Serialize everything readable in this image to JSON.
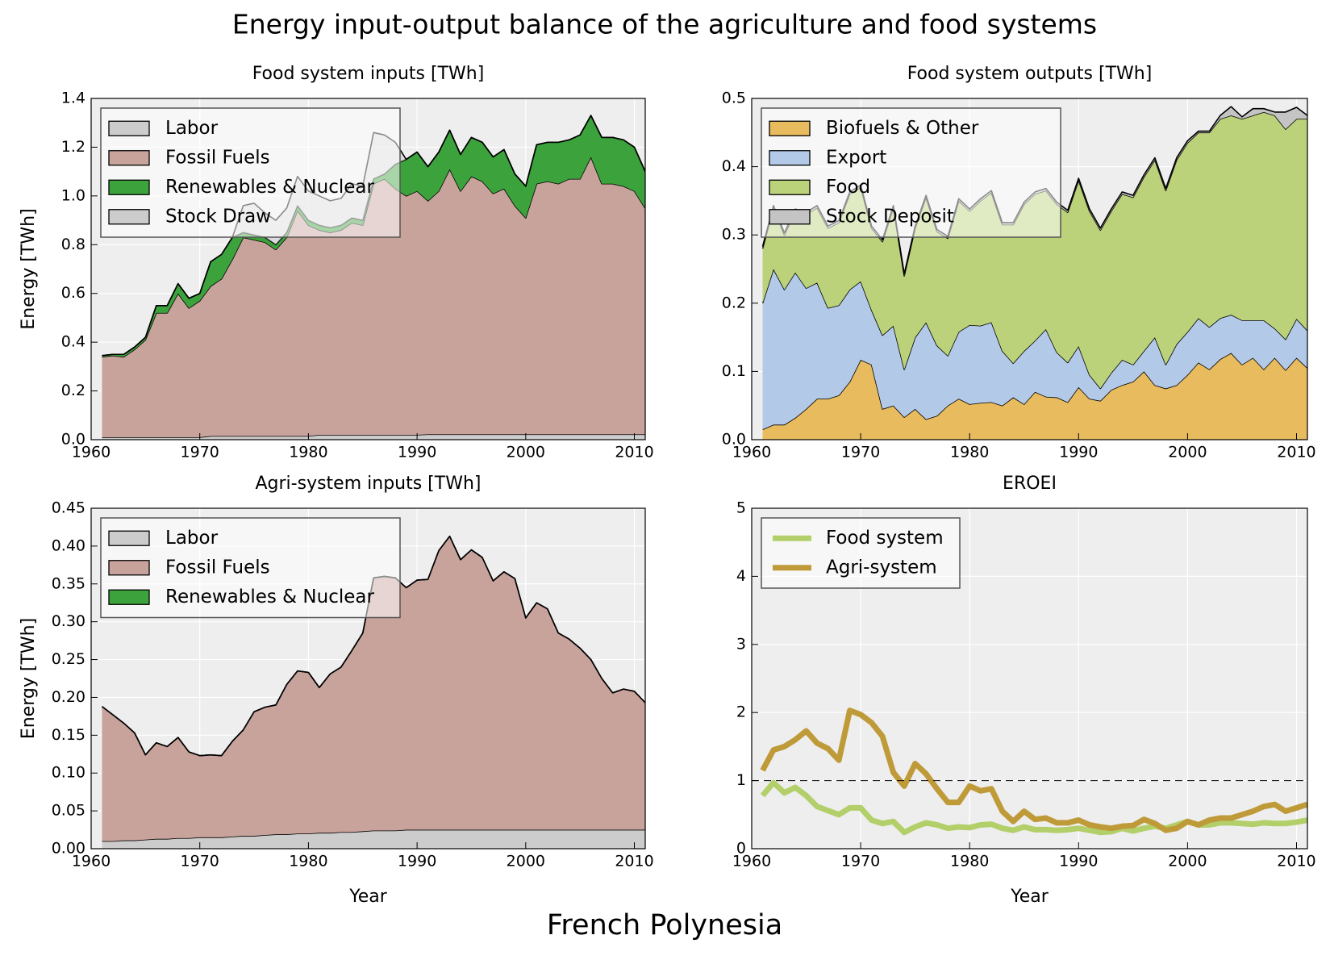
{
  "title": "Energy input-output balance of the agriculture and food systems",
  "footer": "French Polynesia",
  "chart_data": [
    {
      "type": "area",
      "title": "Food system inputs [TWh]",
      "ylabel": "Energy [TWh]",
      "x": [
        1961,
        1962,
        1963,
        1964,
        1965,
        1966,
        1967,
        1968,
        1969,
        1970,
        1971,
        1972,
        1973,
        1974,
        1975,
        1976,
        1977,
        1978,
        1979,
        1980,
        1981,
        1982,
        1983,
        1984,
        1985,
        1986,
        1987,
        1988,
        1989,
        1990,
        1991,
        1992,
        1993,
        1994,
        1995,
        1996,
        1997,
        1998,
        1999,
        2000,
        2001,
        2002,
        2003,
        2004,
        2005,
        2006,
        2007,
        2008,
        2009,
        2010,
        2011
      ],
      "xlim": [
        1960,
        2011
      ],
      "xticks": [
        1960,
        1970,
        1980,
        1990,
        2000,
        2010
      ],
      "ylim": [
        0,
        1.4
      ],
      "yticks": [
        {
          "value": 0,
          "label": "0.0"
        },
        0.2,
        0.4,
        0.6,
        0.8,
        {
          "value": 1,
          "label": "1.0"
        },
        1.2,
        1.4
      ],
      "grid": true,
      "legend": "upper left",
      "series": [
        {
          "name": "Labor",
          "color": "#cccccc",
          "values": [
            0.01,
            0.01,
            0.01,
            0.01,
            0.01,
            0.01,
            0.01,
            0.01,
            0.01,
            0.01,
            0.015,
            0.015,
            0.015,
            0.015,
            0.015,
            0.015,
            0.015,
            0.015,
            0.015,
            0.015,
            0.02,
            0.02,
            0.02,
            0.02,
            0.02,
            0.02,
            0.02,
            0.02,
            0.02,
            0.02,
            0.022,
            0.022,
            0.022,
            0.022,
            0.022,
            0.022,
            0.022,
            0.022,
            0.022,
            0.022,
            0.022,
            0.022,
            0.022,
            0.022,
            0.022,
            0.022,
            0.022,
            0.022,
            0.022,
            0.022,
            0.022
          ]
        },
        {
          "name": "Fossil Fuels",
          "color": "#c8a39c",
          "values": [
            0.33,
            0.335,
            0.33,
            0.36,
            0.4,
            0.51,
            0.51,
            0.59,
            0.53,
            0.56,
            0.615,
            0.645,
            0.725,
            0.815,
            0.805,
            0.795,
            0.765,
            0.815,
            0.925,
            0.865,
            0.84,
            0.83,
            0.84,
            0.87,
            0.86,
            1.03,
            1.05,
            1.01,
            0.98,
            1.0,
            0.958,
            0.998,
            1.088,
            0.998,
            1.058,
            1.038,
            0.988,
            1.008,
            0.938,
            0.888,
            1.028,
            1.038,
            1.028,
            1.048,
            1.048,
            1.138,
            1.028,
            1.028,
            1.018,
            0.998,
            0.928
          ]
        },
        {
          "name": "Renewables & Nuclear",
          "color": "#3ca33c",
          "values": [
            0.005,
            0.005,
            0.01,
            0.01,
            0.01,
            0.03,
            0.03,
            0.04,
            0.04,
            0.03,
            0.1,
            0.1,
            0.09,
            0.02,
            0.02,
            0.02,
            0.02,
            0.02,
            0.02,
            0.02,
            0.02,
            0.02,
            0.02,
            0.02,
            0.02,
            0.02,
            0.02,
            0.1,
            0.15,
            0.16,
            0.14,
            0.16,
            0.16,
            0.15,
            0.16,
            0.16,
            0.15,
            0.16,
            0.13,
            0.13,
            0.16,
            0.16,
            0.17,
            0.16,
            0.18,
            0.17,
            0.19,
            0.19,
            0.19,
            0.18,
            0.15
          ]
        },
        {
          "name": "Stock Draw",
          "color": "#cccccc",
          "values": [
            0,
            0,
            0,
            0,
            0,
            0,
            0,
            0,
            0,
            0,
            0,
            0,
            0,
            0.11,
            0.13,
            0.1,
            0.1,
            0.1,
            0.12,
            0.12,
            0.12,
            0.11,
            0.11,
            0.14,
            0.14,
            0.19,
            0.16,
            0.09,
            0,
            0,
            0,
            0,
            0,
            0,
            0,
            0,
            0,
            0,
            0,
            0,
            0,
            0,
            0,
            0,
            0,
            0,
            0,
            0,
            0,
            0,
            0
          ]
        }
      ]
    },
    {
      "type": "area",
      "title": "Food system outputs [TWh]",
      "x": [
        1961,
        1962,
        1963,
        1964,
        1965,
        1966,
        1967,
        1968,
        1969,
        1970,
        1971,
        1972,
        1973,
        1974,
        1975,
        1976,
        1977,
        1978,
        1979,
        1980,
        1981,
        1982,
        1983,
        1984,
        1985,
        1986,
        1987,
        1988,
        1989,
        1990,
        1991,
        1992,
        1993,
        1994,
        1995,
        1996,
        1997,
        1998,
        1999,
        2000,
        2001,
        2002,
        2003,
        2004,
        2005,
        2006,
        2007,
        2008,
        2009,
        2010,
        2011
      ],
      "xlim": [
        1960,
        2011
      ],
      "xticks": [
        1960,
        1970,
        1980,
        1990,
        2000,
        2010
      ],
      "ylim": [
        0,
        0.5
      ],
      "yticks": [
        {
          "value": 0,
          "label": "0.0"
        },
        0.1,
        0.2,
        0.3,
        0.4,
        0.5
      ],
      "grid": true,
      "legend": "upper left",
      "series": [
        {
          "name": "Biofuels & Other",
          "color": "#e8bc5e",
          "values": [
            0.015,
            0.022,
            0.022,
            0.032,
            0.045,
            0.06,
            0.06,
            0.065,
            0.085,
            0.117,
            0.11,
            0.045,
            0.05,
            0.033,
            0.045,
            0.03,
            0.035,
            0.05,
            0.06,
            0.052,
            0.054,
            0.055,
            0.05,
            0.062,
            0.052,
            0.07,
            0.063,
            0.062,
            0.055,
            0.077,
            0.06,
            0.057,
            0.073,
            0.08,
            0.085,
            0.1,
            0.08,
            0.075,
            0.08,
            0.095,
            0.113,
            0.103,
            0.118,
            0.127,
            0.11,
            0.12,
            0.103,
            0.12,
            0.102,
            0.12,
            0.105
          ]
        },
        {
          "name": "Export",
          "color": "#b3c9e8",
          "values": [
            0.185,
            0.228,
            0.198,
            0.213,
            0.177,
            0.17,
            0.133,
            0.132,
            0.135,
            0.115,
            0.08,
            0.108,
            0.117,
            0.07,
            0.105,
            0.142,
            0.103,
            0.073,
            0.098,
            0.116,
            0.113,
            0.117,
            0.08,
            0.05,
            0.078,
            0.075,
            0.099,
            0.066,
            0.058,
            0.06,
            0.035,
            0.018,
            0.025,
            0.037,
            0.025,
            0.03,
            0.07,
            0.035,
            0.06,
            0.063,
            0.065,
            0.062,
            0.06,
            0.056,
            0.065,
            0.055,
            0.072,
            0.043,
            0.045,
            0.057,
            0.055
          ]
        },
        {
          "name": "Food",
          "color": "#bbd27a",
          "values": [
            0.08,
            0.09,
            0.08,
            0.09,
            0.108,
            0.11,
            0.117,
            0.121,
            0.14,
            0.138,
            0.12,
            0.137,
            0.173,
            0.137,
            0.16,
            0.183,
            0.167,
            0.172,
            0.192,
            0.167,
            0.183,
            0.19,
            0.185,
            0.203,
            0.215,
            0.215,
            0.203,
            0.217,
            0.22,
            0.243,
            0.24,
            0.232,
            0.237,
            0.243,
            0.245,
            0.255,
            0.26,
            0.255,
            0.27,
            0.277,
            0.272,
            0.285,
            0.292,
            0.292,
            0.295,
            0.3,
            0.305,
            0.312,
            0.308,
            0.293,
            0.31
          ]
        },
        {
          "name": "Stock Deposit",
          "color": "#c4c4c4",
          "values": [
            0.003,
            0.003,
            0.003,
            0.003,
            0.003,
            0.003,
            0.003,
            0.003,
            0.003,
            0.003,
            0.003,
            0.003,
            0.003,
            0.003,
            0.003,
            0.003,
            0.003,
            0.003,
            0.003,
            0.003,
            0.003,
            0.003,
            0.003,
            0.003,
            0.003,
            0.003,
            0.003,
            0.003,
            0.003,
            0.003,
            0.003,
            0.003,
            0.003,
            0.003,
            0.003,
            0.003,
            0.003,
            0.003,
            0.003,
            0.003,
            0.002,
            0.002,
            0.005,
            0.013,
            0.003,
            0.01,
            0.005,
            0.005,
            0.025,
            0.017,
            0.005
          ]
        }
      ]
    },
    {
      "type": "area",
      "title": "Agri-system inputs [TWh]",
      "ylabel": "Energy [TWh]",
      "xlabel": "Year",
      "x": [
        1961,
        1962,
        1963,
        1964,
        1965,
        1966,
        1967,
        1968,
        1969,
        1970,
        1971,
        1972,
        1973,
        1974,
        1975,
        1976,
        1977,
        1978,
        1979,
        1980,
        1981,
        1982,
        1983,
        1984,
        1985,
        1986,
        1987,
        1988,
        1989,
        1990,
        1991,
        1992,
        1993,
        1994,
        1995,
        1996,
        1997,
        1998,
        1999,
        2000,
        2001,
        2002,
        2003,
        2004,
        2005,
        2006,
        2007,
        2008,
        2009,
        2010,
        2011
      ],
      "xlim": [
        1960,
        2011
      ],
      "xticks": [
        1960,
        1970,
        1980,
        1990,
        2000,
        2010
      ],
      "ylim": [
        0,
        0.45
      ],
      "yticks": [
        {
          "value": 0,
          "label": "0.00"
        },
        0.05,
        {
          "value": 0.1,
          "label": "0.10"
        },
        0.15,
        {
          "value": 0.2,
          "label": "0.20"
        },
        0.25,
        {
          "value": 0.3,
          "label": "0.30"
        },
        0.35,
        {
          "value": 0.4,
          "label": "0.40"
        },
        0.45
      ],
      "grid": true,
      "legend": "upper left",
      "series": [
        {
          "name": "Labor",
          "color": "#cccccc",
          "values": [
            0.01,
            0.01,
            0.011,
            0.011,
            0.012,
            0.013,
            0.013,
            0.014,
            0.014,
            0.015,
            0.015,
            0.015,
            0.016,
            0.017,
            0.017,
            0.018,
            0.019,
            0.019,
            0.02,
            0.02,
            0.021,
            0.021,
            0.022,
            0.022,
            0.023,
            0.024,
            0.024,
            0.024,
            0.025,
            0.025,
            0.025,
            0.025,
            0.025,
            0.025,
            0.025,
            0.025,
            0.025,
            0.025,
            0.025,
            0.025,
            0.025,
            0.025,
            0.025,
            0.025,
            0.025,
            0.025,
            0.025,
            0.025,
            0.025,
            0.025,
            0.025
          ]
        },
        {
          "name": "Fossil Fuels",
          "color": "#c8a39c",
          "values": [
            0.178,
            0.167,
            0.155,
            0.142,
            0.112,
            0.127,
            0.122,
            0.133,
            0.114,
            0.108,
            0.109,
            0.108,
            0.126,
            0.14,
            0.164,
            0.169,
            0.171,
            0.198,
            0.215,
            0.213,
            0.192,
            0.21,
            0.218,
            0.24,
            0.262,
            0.334,
            0.336,
            0.334,
            0.32,
            0.33,
            0.331,
            0.369,
            0.388,
            0.357,
            0.37,
            0.36,
            0.329,
            0.341,
            0.332,
            0.28,
            0.3,
            0.292,
            0.26,
            0.252,
            0.24,
            0.225,
            0.2,
            0.181,
            0.186,
            0.183,
            0.168
          ]
        },
        {
          "name": "Renewables & Nuclear",
          "color": "#3ca33c",
          "values": [
            0,
            0,
            0,
            0,
            0,
            0,
            0,
            0,
            0,
            0,
            0,
            0,
            0,
            0,
            0,
            0,
            0,
            0,
            0,
            0,
            0,
            0,
            0,
            0,
            0,
            0,
            0,
            0,
            0,
            0,
            0,
            0,
            0,
            0,
            0,
            0,
            0,
            0,
            0,
            0,
            0,
            0,
            0,
            0,
            0,
            0,
            0,
            0,
            0,
            0,
            0
          ]
        }
      ]
    },
    {
      "type": "line",
      "title": "EROEI",
      "xlabel": "Year",
      "x": [
        1961,
        1962,
        1963,
        1964,
        1965,
        1966,
        1967,
        1968,
        1969,
        1970,
        1971,
        1972,
        1973,
        1974,
        1975,
        1976,
        1977,
        1978,
        1979,
        1980,
        1981,
        1982,
        1983,
        1984,
        1985,
        1986,
        1987,
        1988,
        1989,
        1990,
        1991,
        1992,
        1993,
        1994,
        1995,
        1996,
        1997,
        1998,
        1999,
        2000,
        2001,
        2002,
        2003,
        2004,
        2005,
        2006,
        2007,
        2008,
        2009,
        2010,
        2011
      ],
      "xlim": [
        1960,
        2011
      ],
      "xticks": [
        1960,
        1970,
        1980,
        1990,
        2000,
        2010
      ],
      "ylim": [
        0,
        5
      ],
      "yticks": [
        0,
        1,
        2,
        3,
        4,
        5
      ],
      "grid": true,
      "legend": "upper left",
      "hline": 1,
      "series": [
        {
          "name": "Food system",
          "color": "#b2cf6a",
          "values": [
            0.78,
            0.97,
            0.82,
            0.9,
            0.78,
            0.62,
            0.56,
            0.5,
            0.6,
            0.6,
            0.42,
            0.37,
            0.4,
            0.24,
            0.32,
            0.38,
            0.35,
            0.3,
            0.32,
            0.31,
            0.35,
            0.36,
            0.3,
            0.27,
            0.32,
            0.28,
            0.28,
            0.27,
            0.28,
            0.3,
            0.27,
            0.24,
            0.25,
            0.3,
            0.26,
            0.3,
            0.33,
            0.3,
            0.35,
            0.4,
            0.35,
            0.35,
            0.38,
            0.38,
            0.37,
            0.36,
            0.38,
            0.37,
            0.37,
            0.39,
            0.42
          ]
        },
        {
          "name": "Agri-system",
          "color": "#bf9a38",
          "values": [
            1.15,
            1.45,
            1.5,
            1.6,
            1.73,
            1.55,
            1.47,
            1.3,
            2.03,
            1.97,
            1.85,
            1.65,
            1.12,
            0.92,
            1.25,
            1.1,
            0.88,
            0.68,
            0.68,
            0.92,
            0.85,
            0.88,
            0.55,
            0.4,
            0.55,
            0.43,
            0.45,
            0.38,
            0.38,
            0.42,
            0.35,
            0.32,
            0.3,
            0.33,
            0.34,
            0.43,
            0.37,
            0.27,
            0.3,
            0.4,
            0.35,
            0.42,
            0.45,
            0.45,
            0.5,
            0.55,
            0.62,
            0.65,
            0.55,
            0.6,
            0.65
          ]
        }
      ]
    }
  ]
}
